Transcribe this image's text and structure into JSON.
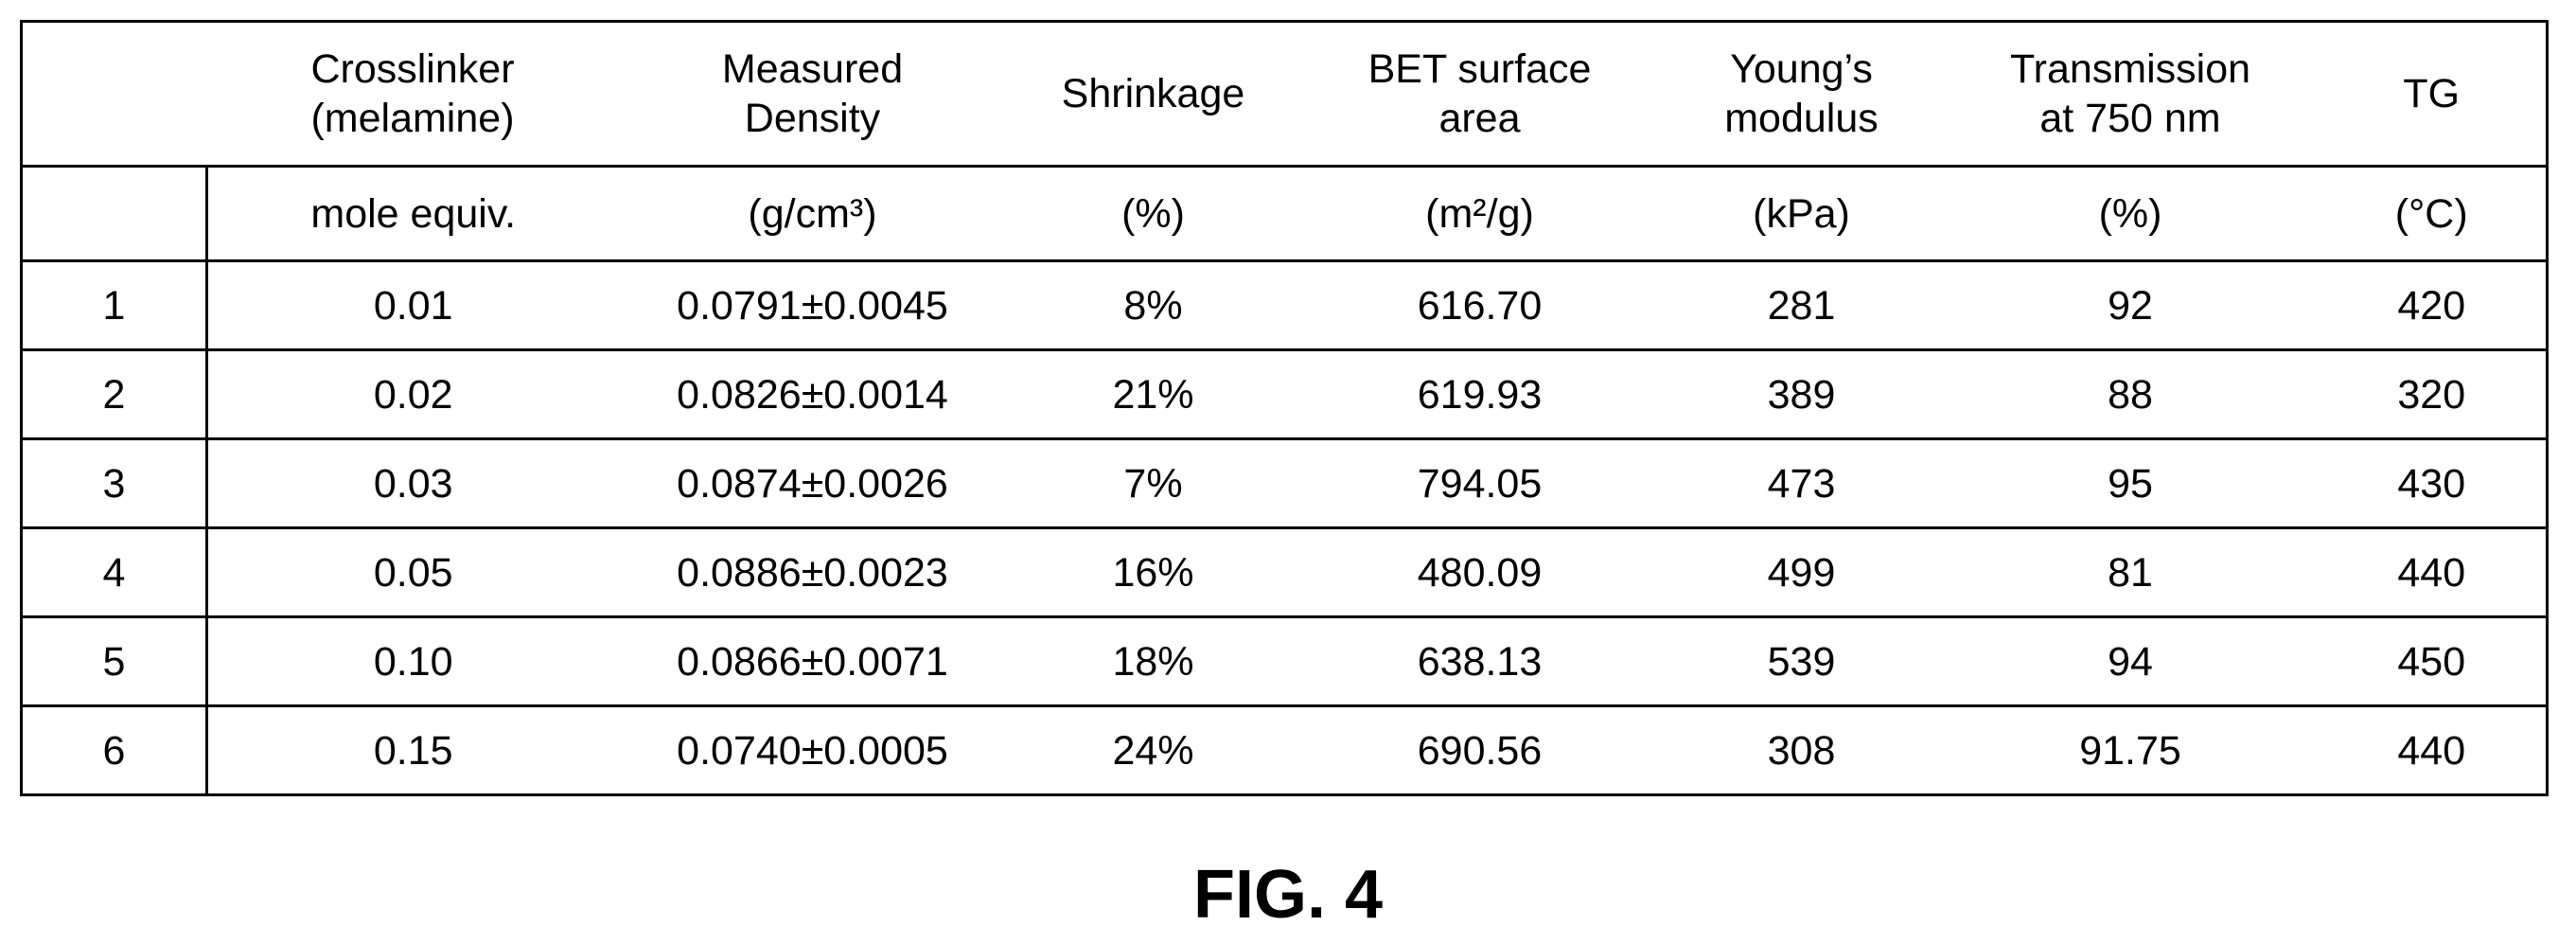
{
  "table": {
    "header_row1": [
      [
        "",
        ""
      ],
      [
        "Crosslinker",
        "(melamine)"
      ],
      [
        "Measured",
        "Density"
      ],
      [
        "Shrinkage",
        ""
      ],
      [
        "BET surface",
        "area"
      ],
      [
        "Young’s",
        "modulus"
      ],
      [
        "Transmission",
        "at 750 nm"
      ],
      [
        "TG",
        ""
      ]
    ],
    "header_row2": [
      "",
      "mole equiv.",
      "(g/cm³)",
      "(%)",
      "(m²/g)",
      "(kPa)",
      "(%)",
      "(°C)"
    ],
    "rows": [
      [
        "1",
        "0.01",
        "0.0791±0.0045",
        "8%",
        "616.70",
        "281",
        "92",
        "420"
      ],
      [
        "2",
        "0.02",
        "0.0826±0.0014",
        "21%",
        "619.93",
        "389",
        "88",
        "320"
      ],
      [
        "3",
        "0.03",
        "0.0874±0.0026",
        "7%",
        "794.05",
        "473",
        "95",
        "430"
      ],
      [
        "4",
        "0.05",
        "0.0886±0.0023",
        "16%",
        "480.09",
        "499",
        "81",
        "440"
      ],
      [
        "5",
        "0.10",
        "0.0866±0.0071",
        "18%",
        "638.13",
        "539",
        "94",
        "450"
      ],
      [
        "6",
        "0.15",
        "0.0740±0.0005",
        "24%",
        "690.56",
        "308",
        "91.75",
        "440"
      ]
    ]
  },
  "caption": "FIG. 4"
}
